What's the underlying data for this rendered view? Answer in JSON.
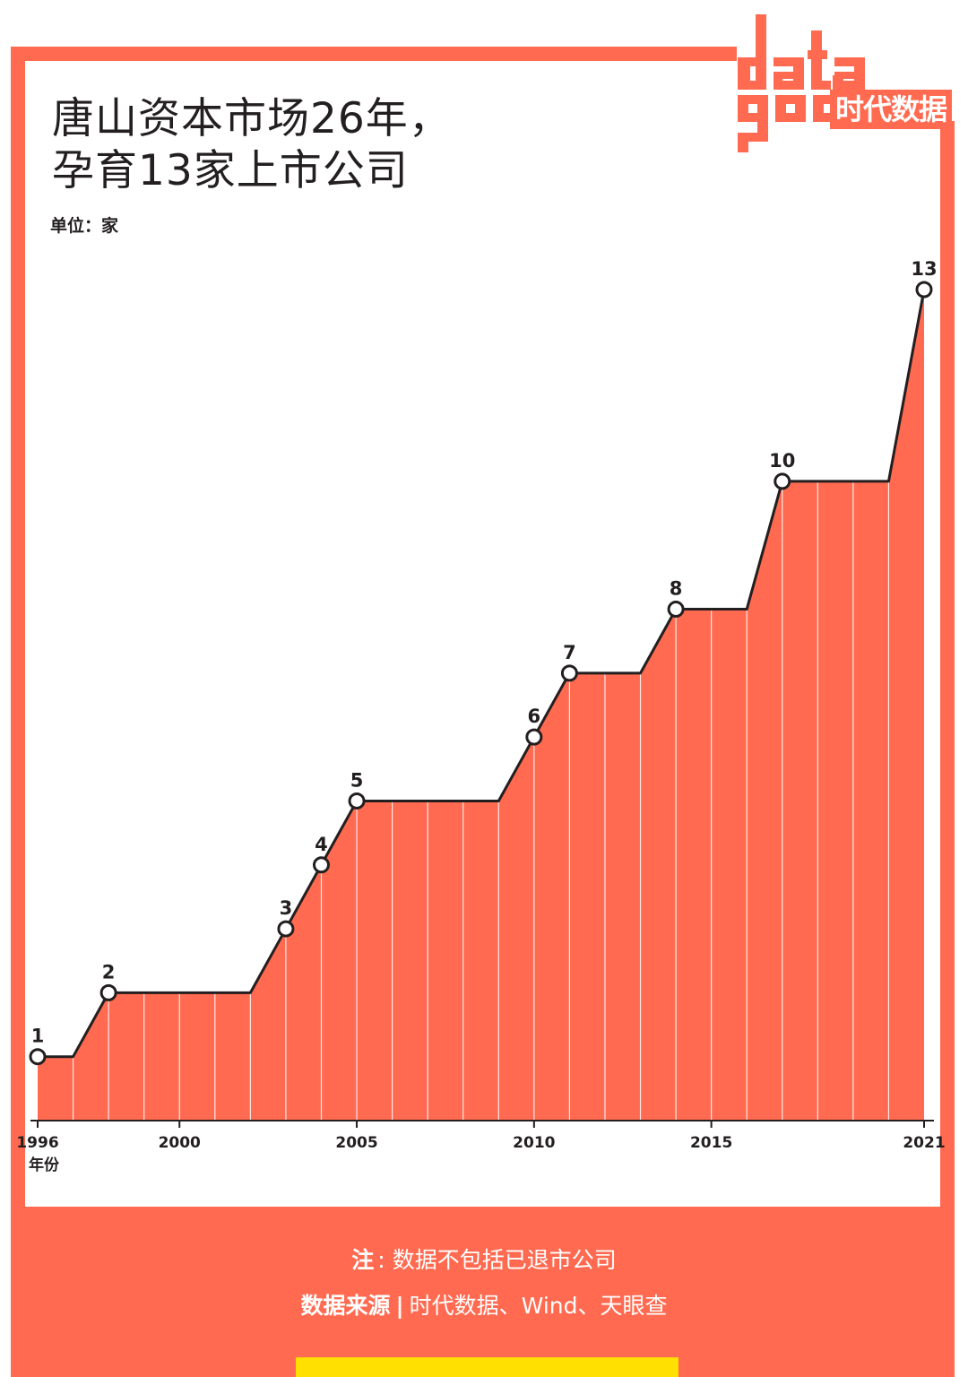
{
  "title_line1": "唐山资本市场26年，",
  "title_line2": "孕育13家上市公司",
  "unit_label": "单位：家",
  "logo": {
    "top_word": "data",
    "bottom_word": "god",
    "cn_text": "时代数据"
  },
  "colors": {
    "accent": "#ff6a50",
    "line": "#231f20",
    "footer_strip": "#ffe000"
  },
  "chart_data": {
    "type": "area",
    "title": "唐山资本市场26年，孕育13家上市公司",
    "ylabel": "单位：家",
    "xlabel": "年份",
    "x": [
      1996,
      1997,
      1998,
      1999,
      2000,
      2001,
      2002,
      2003,
      2004,
      2005,
      2006,
      2007,
      2008,
      2009,
      2010,
      2011,
      2012,
      2013,
      2014,
      2015,
      2016,
      2017,
      2018,
      2019,
      2020,
      2021
    ],
    "values": [
      1,
      1,
      2,
      2,
      2,
      2,
      2,
      3,
      4,
      5,
      5,
      5,
      5,
      5,
      6,
      7,
      7,
      7,
      8,
      8,
      8,
      10,
      10,
      10,
      10,
      13
    ],
    "labeled_points": [
      {
        "x": 1996,
        "y": 1,
        "label": "1"
      },
      {
        "x": 1998,
        "y": 2,
        "label": "2"
      },
      {
        "x": 2003,
        "y": 3,
        "label": "3"
      },
      {
        "x": 2004,
        "y": 4,
        "label": "4"
      },
      {
        "x": 2005,
        "y": 5,
        "label": "5"
      },
      {
        "x": 2010,
        "y": 6,
        "label": "6"
      },
      {
        "x": 2011,
        "y": 7,
        "label": "7"
      },
      {
        "x": 2014,
        "y": 8,
        "label": "8"
      },
      {
        "x": 2017,
        "y": 10,
        "label": "10"
      },
      {
        "x": 2021,
        "y": 13,
        "label": "13"
      }
    ],
    "x_ticks": [
      "1996",
      "2000",
      "2005",
      "2010",
      "2015",
      "2021"
    ],
    "ylim": [
      0,
      13
    ],
    "grid": false
  },
  "footer": {
    "note_label": "注",
    "note_colon": ":",
    "note_text": "数据不包括已退市公司",
    "source_label": "数据来源",
    "source_sep": "|",
    "source_text": "时代数据、Wind、天眼查"
  }
}
